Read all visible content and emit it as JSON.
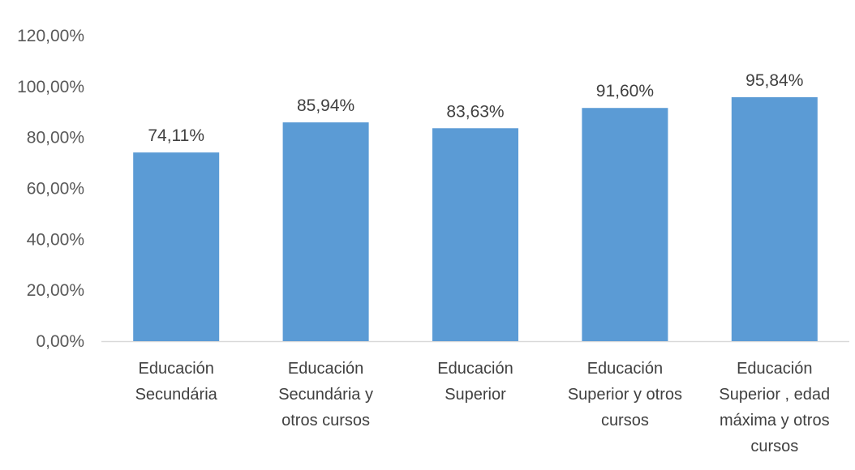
{
  "chart_data": {
    "type": "bar",
    "title": "",
    "xlabel": "",
    "ylabel": "",
    "categories": [
      [
        "Educación",
        "Secundária"
      ],
      [
        "Educación",
        "Secundária y",
        "otros cursos"
      ],
      [
        "Educación",
        "Superior"
      ],
      [
        "Educación",
        "Superior y otros",
        "cursos"
      ],
      [
        "Educación",
        "Superior , edad",
        "máxima y otros",
        "cursos"
      ]
    ],
    "values": [
      74.11,
      85.94,
      83.63,
      91.6,
      95.84
    ],
    "data_labels": [
      "74,11%",
      "85,94%",
      "83,63%",
      "91,60%",
      "95,84%"
    ],
    "ylim": [
      0,
      120
    ],
    "yticks": [
      0,
      20,
      40,
      60,
      80,
      100,
      120
    ],
    "ytick_labels": [
      "0,00%",
      "20,00%",
      "40,00%",
      "60,00%",
      "80,00%",
      "100,00%",
      "120,00%"
    ],
    "grid": false,
    "legend": "none",
    "colors": {
      "bar": "#5B9BD5",
      "axis": "#D9D9D9"
    }
  }
}
